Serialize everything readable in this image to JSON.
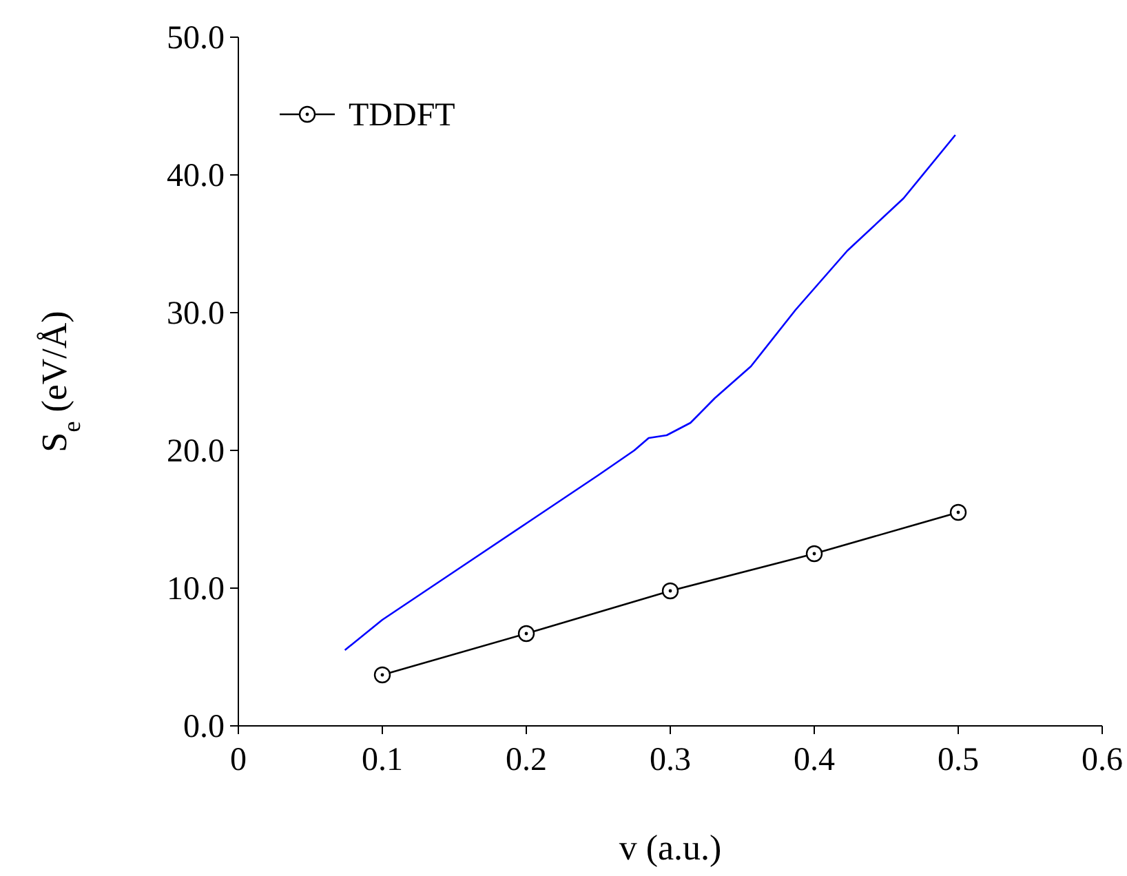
{
  "chart_data": {
    "type": "line",
    "xlabel": "v (a.u.)",
    "ylabel": "S$_{e}$ (eV/Å)",
    "xlim": [
      0,
      0.6
    ],
    "xticks": [
      0,
      0.1,
      0.2,
      0.3,
      0.4,
      0.5,
      0.6
    ],
    "ylim": [
      0,
      50
    ],
    "yticks": [
      {
        "value": 0,
        "label": "0.0"
      },
      {
        "value": 10,
        "label": "10.0"
      },
      {
        "value": 20,
        "label": "20.0"
      },
      {
        "value": 30,
        "label": "30.0"
      },
      {
        "value": 40,
        "label": "40.0"
      },
      {
        "value": 50,
        "label": "50.0"
      }
    ],
    "legend": "top left",
    "grid": false,
    "line_style": "solid",
    "series": [
      {
        "color": "#0000ff",
        "marker": "none",
        "x": [
          0.074,
          0.1,
          0.15,
          0.2,
          0.25,
          0.275,
          0.285,
          0.2975,
          0.314,
          0.331,
          0.356,
          0.387,
          0.423,
          0.462,
          0.498
        ],
        "values": [
          5.5,
          7.7,
          11.2,
          14.7,
          18.2,
          20.0,
          20.9,
          21.1,
          22.0,
          23.8,
          26.1,
          30.2,
          34.5,
          38.3,
          42.9
        ]
      },
      {
        "name": "TDDFT",
        "color": "#000000",
        "marker": "circle",
        "x": [
          0.1,
          0.2,
          0.3,
          0.4,
          0.5
        ],
        "values": [
          3.7,
          6.7,
          9.8,
          12.5,
          15.5
        ]
      }
    ]
  }
}
